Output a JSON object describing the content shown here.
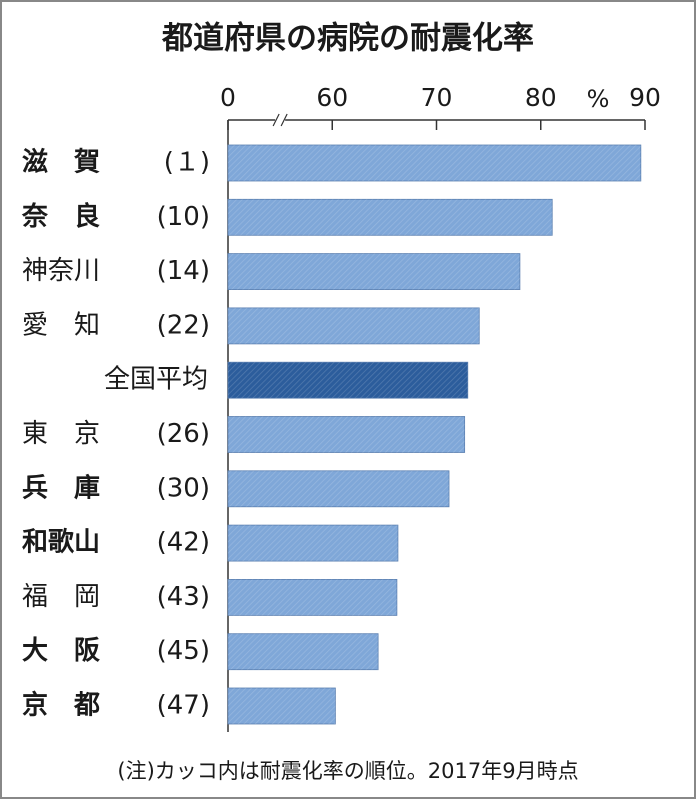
{
  "chart_data": {
    "type": "bar",
    "orientation": "horizontal",
    "title": "都道府県の病院の耐震化率",
    "unit": "%",
    "categories": [
      "滋　賀",
      "奈　良",
      "神奈川",
      "愛　知",
      "全国平均",
      "東　京",
      "兵　庫",
      "和歌山",
      "福　岡",
      "大　阪",
      "京　都"
    ],
    "ranks": [
      "(１)",
      "(10)",
      "(14)",
      "(22)",
      null,
      "(26)",
      "(30)",
      "(42)",
      "(43)",
      "(45)",
      "(47)"
    ],
    "bold": [
      true,
      true,
      false,
      false,
      false,
      false,
      true,
      true,
      false,
      true,
      true
    ],
    "values": [
      89.6,
      81.1,
      78.0,
      74.1,
      73.0,
      72.7,
      71.2,
      66.3,
      66.2,
      64.4,
      60.3
    ],
    "color": "#7fa7d8",
    "highlight_color": "#2c5d9c",
    "highlight_index": 4,
    "xlim": [
      0,
      90
    ],
    "xticks": [
      0,
      60,
      70,
      80,
      90
    ],
    "axis_break": true,
    "note": "(注)カッコ内は耐震化率の順位。2017年9月時点"
  }
}
